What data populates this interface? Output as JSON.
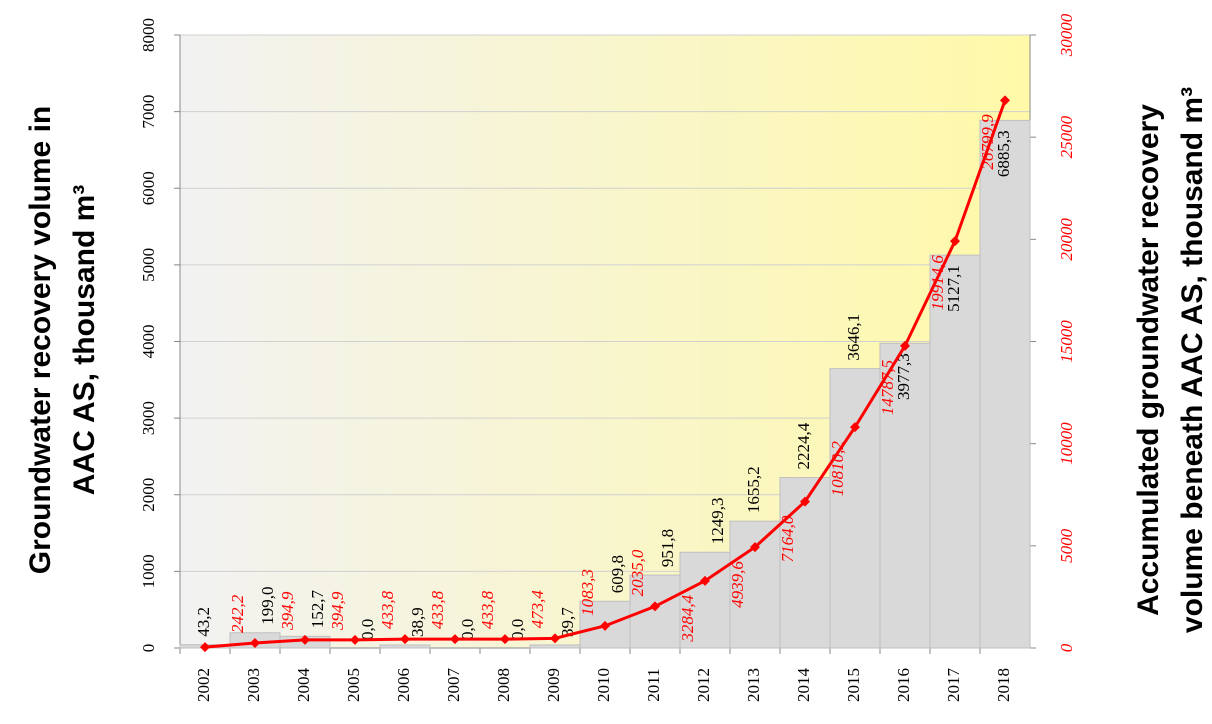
{
  "chart_data": {
    "type": "bar_line",
    "ylabel": [
      "Groundwater  recovery volume in",
      "AAC AS, thousand m³"
    ],
    "y2label": [
      "Accumulated groundwater recovery",
      "volume beneath AAC AS, thousand m³"
    ],
    "categories": [
      "2002",
      "2003",
      "2004",
      "2005",
      "2006",
      "2007",
      "2008",
      "2009",
      "2010",
      "2011",
      "2012",
      "2013",
      "2014",
      "2015",
      "2016",
      "2017",
      "2018"
    ],
    "series": [
      {
        "name": "Groundwater recovery volume",
        "color": "#d9d9d9",
        "type": "bar",
        "values": [
          43.2,
          199.0,
          152.7,
          0,
          38.9,
          0,
          0,
          39.7,
          609.8,
          951.8,
          1249.3,
          1655.2,
          2224.4,
          3646.1,
          3977.3,
          5127.1,
          6885.3
        ],
        "value_labels": [
          "43,2",
          "199,0",
          "152,7",
          "0,0",
          "38,9",
          "0,0",
          "0,0",
          "39,7",
          "609,8",
          "951,8",
          "1249,3",
          "1655,2",
          "2224,4",
          "3646,1",
          "3977,3",
          "5127,1",
          "6885,3"
        ]
      },
      {
        "name": "Accumulated groundwater recovery volume",
        "color": "#ff0000",
        "type": "line",
        "axis": "y2",
        "values": [
          43.2,
          242.2,
          394.9,
          394.9,
          433.8,
          433.8,
          433.8,
          473.4,
          1083.3,
          2035.0,
          3284.4,
          4939.6,
          7164.0,
          10810.2,
          14787.5,
          19914.6,
          26799.9
        ],
        "value_labels": [
          null,
          "242,2",
          "394,9",
          "394,9",
          "433,8",
          "433,8",
          "433,8",
          "473,4",
          "1083,3",
          "2035,0",
          "3284,4",
          "4939,6",
          "7164,0",
          "10810,2",
          "14787,5",
          "19914,6",
          "26799,9"
        ]
      }
    ],
    "ylim": [
      0,
      8000
    ],
    "yticks": [
      0,
      1000,
      2000,
      3000,
      4000,
      5000,
      6000,
      7000,
      8000
    ],
    "y2lim": [
      0,
      30000
    ],
    "y2ticks": [
      0,
      5000,
      10000,
      15000,
      20000,
      25000,
      30000
    ],
    "grid": true
  }
}
